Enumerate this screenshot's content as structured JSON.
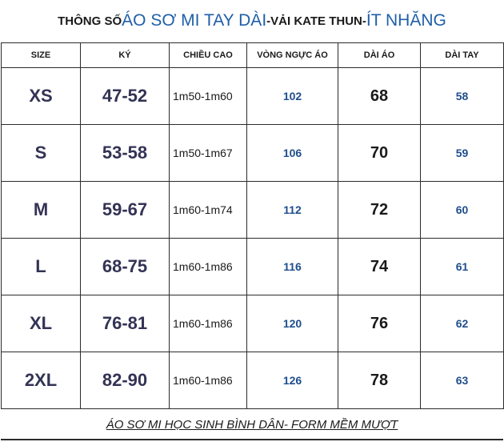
{
  "title": {
    "part1": "THÔNG SỐ ",
    "part2": "ÁO SƠ MI TAY DÀI",
    "part3": "-VẢI KATE THUN-",
    "part4": "ÍT NHĂNG"
  },
  "headers": [
    "SIZE",
    "KÝ",
    "CHIỀU CAO",
    "VÒNG NGỰC ÁO",
    "DÀI ÁO",
    "DÀI TAY"
  ],
  "rows": [
    {
      "size": "XS",
      "ky": "47-52",
      "chieu_cao": "1m50-1m60",
      "vong_nguc": "102",
      "dai_ao": "68",
      "dai_tay": "58"
    },
    {
      "size": "S",
      "ky": "53-58",
      "chieu_cao": "1m50-1m67",
      "vong_nguc": "106",
      "dai_ao": "70",
      "dai_tay": "59"
    },
    {
      "size": "M",
      "ky": "59-67",
      "chieu_cao": "1m60-1m74",
      "vong_nguc": "112",
      "dai_ao": "72",
      "dai_tay": "60"
    },
    {
      "size": "L",
      "ky": "68-75",
      "chieu_cao": "1m60-1m86",
      "vong_nguc": "116",
      "dai_ao": "74",
      "dai_tay": "61"
    },
    {
      "size": "XL",
      "ky": "76-81",
      "chieu_cao": "1m60-1m86",
      "vong_nguc": "120",
      "dai_ao": "76",
      "dai_tay": "62"
    },
    {
      "size": "2XL",
      "ky": "82-90",
      "chieu_cao": "1m60-1m86",
      "vong_nguc": "126",
      "dai_ao": "78",
      "dai_tay": "63"
    }
  ],
  "footer": "ÁO SƠ MI HỌC SINH BÌNH DÂN- FORM MỀM MƯỢT"
}
